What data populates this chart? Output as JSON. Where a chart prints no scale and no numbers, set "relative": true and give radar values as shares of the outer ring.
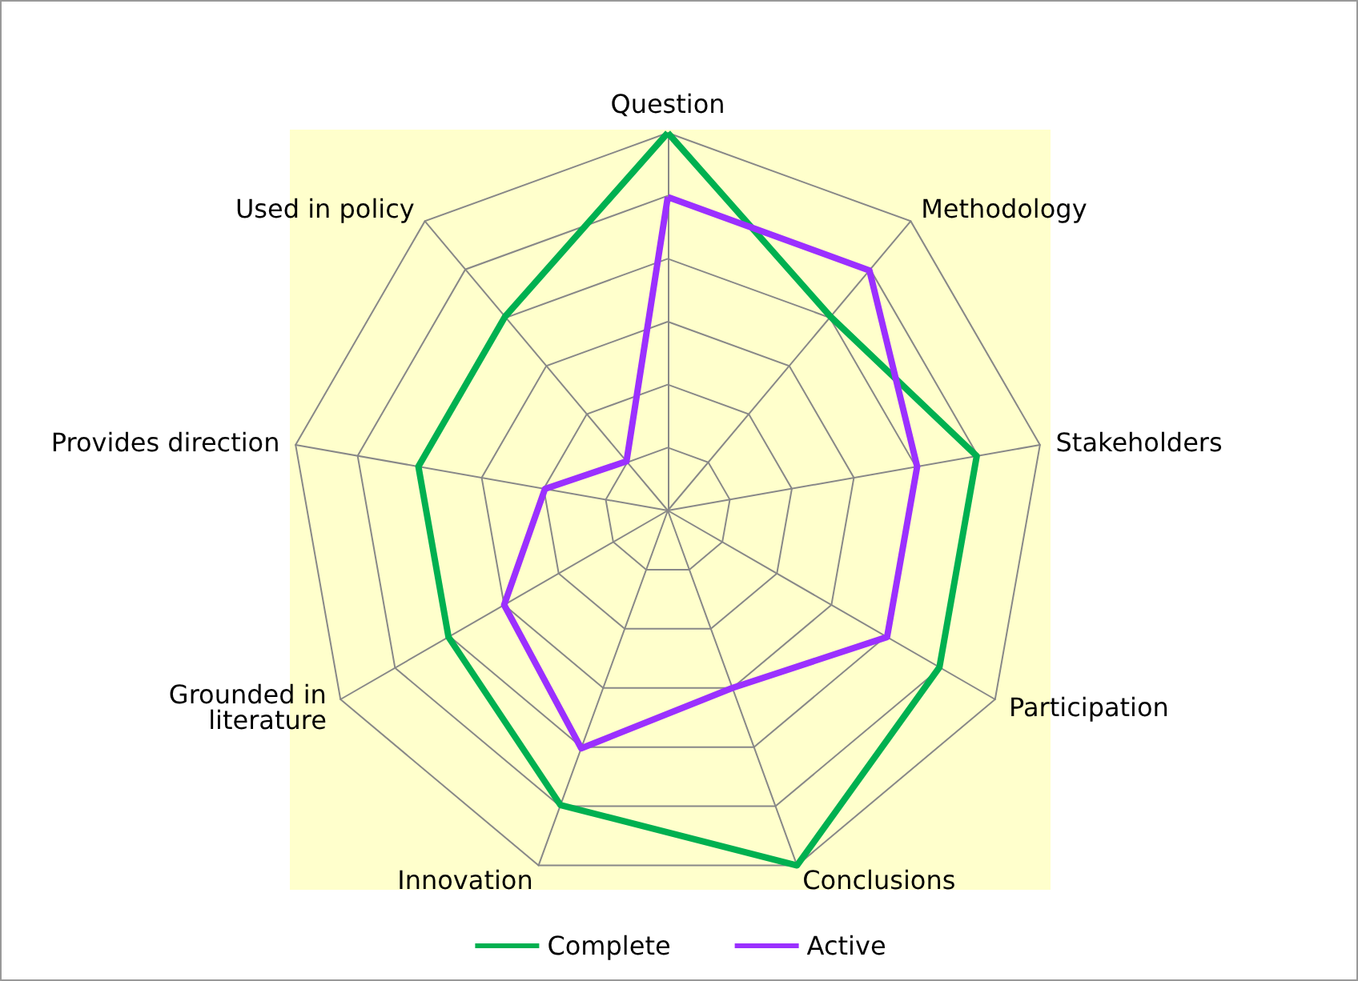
{
  "chart_data": {
    "type": "radar",
    "relative": true,
    "categories": [
      "Question",
      "Methodology",
      "Stakeholders",
      "Participation",
      "Conclusions",
      "Innovation",
      "Grounded in literature",
      "Provides direction",
      "Used in policy"
    ],
    "series": [
      {
        "name": "Complete",
        "color": "#00b050",
        "values": [
          1,
          0.67,
          0.83,
          0.83,
          1,
          0.83,
          0.67,
          0.67,
          0.67
        ]
      },
      {
        "name": "Active",
        "color": "#9b30ff",
        "values": [
          0.83,
          0.83,
          0.67,
          0.67,
          0.5,
          0.67,
          0.5,
          0.33,
          0.17
        ]
      }
    ],
    "legend": "bottom",
    "marker": "none",
    "line_style": "solid"
  }
}
